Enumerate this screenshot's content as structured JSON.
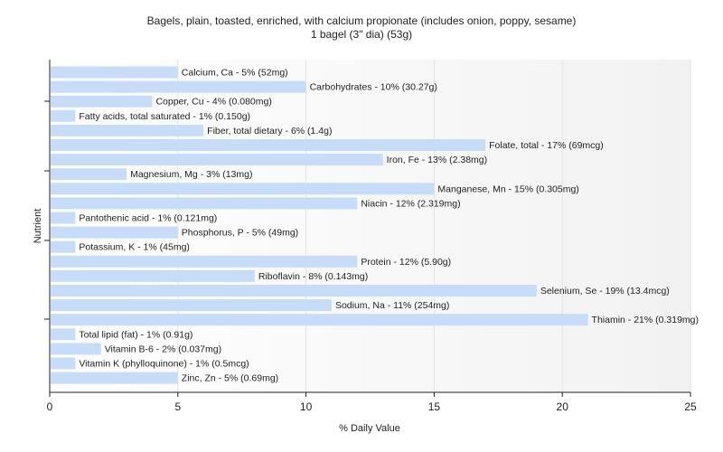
{
  "chart_data": {
    "type": "bar",
    "orientation": "horizontal",
    "title": "Bagels, plain, toasted, enriched, with calcium propionate (includes onion, poppy, sesame)",
    "subtitle": "1 bagel (3\" dia) (53g)",
    "xlabel": "% Daily Value",
    "ylabel": "Nutrient",
    "xlim": [
      0,
      25
    ],
    "xticks": [
      0,
      5,
      10,
      15,
      20,
      25
    ],
    "grid": true,
    "bar_color": "#c6dcf7",
    "categories": [
      "Calcium, Ca",
      "Carbohydrates",
      "Copper, Cu",
      "Fatty acids, total saturated",
      "Fiber, total dietary",
      "Folate, total",
      "Iron, Fe",
      "Magnesium, Mg",
      "Manganese, Mn",
      "Niacin",
      "Pantothenic acid",
      "Phosphorus, P",
      "Potassium, K",
      "Protein",
      "Riboflavin",
      "Selenium, Se",
      "Sodium, Na",
      "Thiamin",
      "Total lipid (fat)",
      "Vitamin B-6",
      "Vitamin K (phylloquinone)",
      "Zinc, Zn"
    ],
    "values": [
      5,
      10,
      4,
      1,
      6,
      17,
      13,
      3,
      15,
      12,
      1,
      5,
      1,
      12,
      8,
      19,
      11,
      21,
      1,
      2,
      1,
      5
    ],
    "labels": [
      "Calcium, Ca - 5% (52mg)",
      "Carbohydrates - 10% (30.27g)",
      "Copper, Cu - 4% (0.080mg)",
      "Fatty acids, total saturated - 1% (0.150g)",
      "Fiber, total dietary - 6% (1.4g)",
      "Folate, total - 17% (69mcg)",
      "Iron, Fe - 13% (2.38mg)",
      "Magnesium, Mg - 3% (13mg)",
      "Manganese, Mn - 15% (0.305mg)",
      "Niacin - 12% (2.319mg)",
      "Pantothenic acid - 1% (0.121mg)",
      "Phosphorus, P - 5% (49mg)",
      "Potassium, K - 1% (45mg)",
      "Protein - 12% (5.90g)",
      "Riboflavin - 8% (0.143mg)",
      "Selenium, Se - 19% (13.4mcg)",
      "Sodium, Na - 11% (254mg)",
      "Thiamin - 21% (0.319mg)",
      "Total lipid (fat) - 1% (0.91g)",
      "Vitamin B-6 - 2% (0.037mg)",
      "Vitamin K (phylloquinone) - 1% (0.5mcg)",
      "Zinc, Zn - 5% (0.69mg)"
    ]
  }
}
